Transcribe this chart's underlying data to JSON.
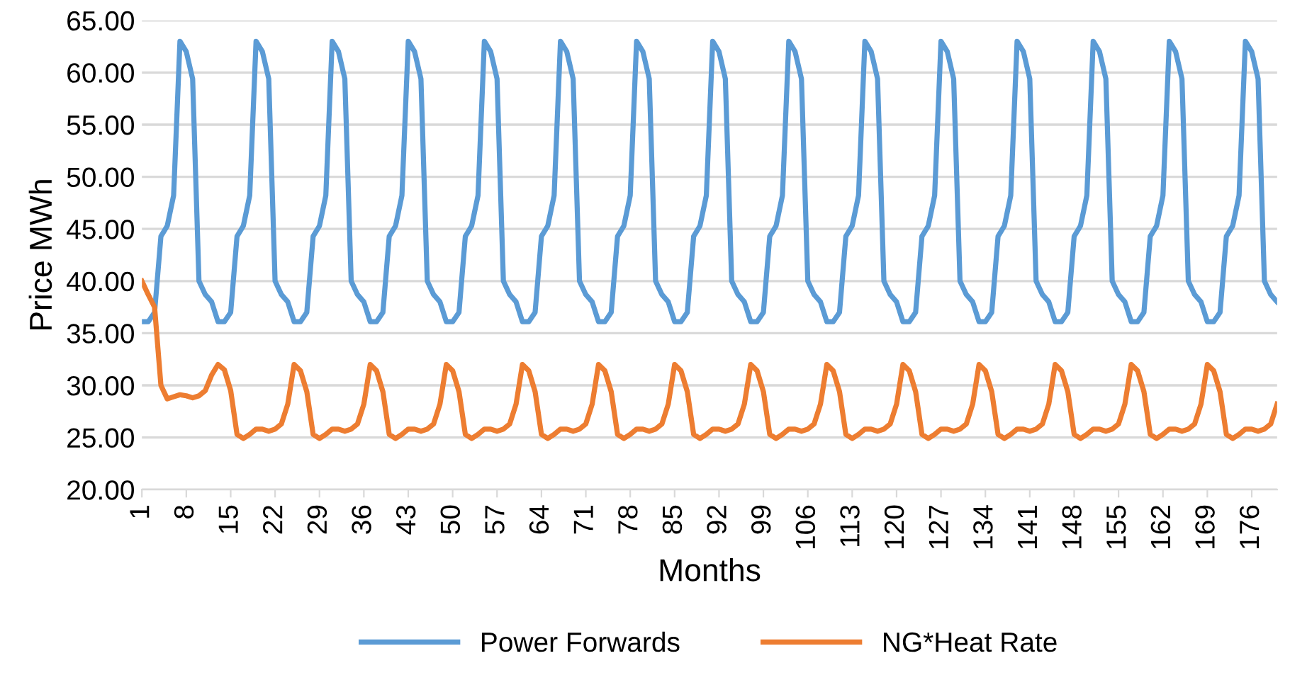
{
  "chart_data": {
    "type": "line",
    "xlabel": "Months",
    "ylabel": "Price MWh",
    "x": [
      1,
      2,
      3,
      4,
      5,
      6,
      7,
      8,
      9,
      10,
      11,
      12,
      13,
      14,
      15,
      16,
      17,
      18,
      19,
      20,
      21,
      22,
      23,
      24,
      25,
      26,
      27,
      28,
      29,
      30,
      31,
      32,
      33,
      34,
      35,
      36,
      37,
      38,
      39,
      40,
      41,
      42,
      43,
      44,
      45,
      46,
      47,
      48,
      49,
      50,
      51,
      52,
      53,
      54,
      55,
      56,
      57,
      58,
      59,
      60,
      61,
      62,
      63,
      64,
      65,
      66,
      67,
      68,
      69,
      70,
      71,
      72,
      73,
      74,
      75,
      76,
      77,
      78,
      79,
      80,
      81,
      82,
      83,
      84,
      85,
      86,
      87,
      88,
      89,
      90,
      91,
      92,
      93,
      94,
      95,
      96,
      97,
      98,
      99,
      100,
      101,
      102,
      103,
      104,
      105,
      106,
      107,
      108,
      109,
      110,
      111,
      112,
      113,
      114,
      115,
      116,
      117,
      118,
      119,
      120,
      121,
      122,
      123,
      124,
      125,
      126,
      127,
      128,
      129,
      130,
      131,
      132,
      133,
      134,
      135,
      136,
      137,
      138,
      139,
      140,
      141,
      142,
      143,
      144,
      145,
      146,
      147,
      148,
      149,
      150,
      151,
      152,
      153,
      154,
      155,
      156,
      157,
      158,
      159,
      160,
      161,
      162,
      163,
      164,
      165,
      166,
      167,
      168,
      169,
      170,
      171,
      172,
      173,
      174,
      175,
      176,
      177,
      178,
      179,
      180
    ],
    "series": [
      {
        "name": "Power Forwards",
        "color": "#5b9bd5",
        "values": [
          36.1,
          36.1,
          37.0,
          44.3,
          45.3,
          48.2,
          63.0,
          62.0,
          59.4,
          40.0,
          38.7,
          38.0,
          36.1,
          36.1,
          37.0,
          44.3,
          45.3,
          48.2,
          63.0,
          62.0,
          59.4,
          40.0,
          38.7,
          38.0,
          36.1,
          36.1,
          37.0,
          44.3,
          45.3,
          48.2,
          63.0,
          62.0,
          59.4,
          40.0,
          38.7,
          38.0,
          36.1,
          36.1,
          37.0,
          44.3,
          45.3,
          48.2,
          63.0,
          62.0,
          59.4,
          40.0,
          38.7,
          38.0,
          36.1,
          36.1,
          37.0,
          44.3,
          45.3,
          48.2,
          63.0,
          62.0,
          59.4,
          40.0,
          38.7,
          38.0,
          36.1,
          36.1,
          37.0,
          44.3,
          45.3,
          48.2,
          63.0,
          62.0,
          59.4,
          40.0,
          38.7,
          38.0,
          36.1,
          36.1,
          37.0,
          44.3,
          45.3,
          48.2,
          63.0,
          62.0,
          59.4,
          40.0,
          38.7,
          38.0,
          36.1,
          36.1,
          37.0,
          44.3,
          45.3,
          48.2,
          63.0,
          62.0,
          59.4,
          40.0,
          38.7,
          38.0,
          36.1,
          36.1,
          37.0,
          44.3,
          45.3,
          48.2,
          63.0,
          62.0,
          59.4,
          40.0,
          38.7,
          38.0,
          36.1,
          36.1,
          37.0,
          44.3,
          45.3,
          48.2,
          63.0,
          62.0,
          59.4,
          40.0,
          38.7,
          38.0,
          36.1,
          36.1,
          37.0,
          44.3,
          45.3,
          48.2,
          63.0,
          62.0,
          59.4,
          40.0,
          38.7,
          38.0,
          36.1,
          36.1,
          37.0,
          44.3,
          45.3,
          48.2,
          63.0,
          62.0,
          59.4,
          40.0,
          38.7,
          38.0,
          36.1,
          36.1,
          37.0,
          44.3,
          45.3,
          48.2,
          63.0,
          62.0,
          59.4,
          40.0,
          38.7,
          38.0,
          36.1,
          36.1,
          37.0,
          44.3,
          45.3,
          48.2,
          63.0,
          62.0,
          59.4,
          40.0,
          38.7,
          38.0,
          36.1,
          36.1,
          37.0,
          44.3,
          45.3,
          48.2,
          63.0,
          62.0,
          59.4,
          40.0,
          38.7,
          38.0
        ]
      },
      {
        "name": "NG*Heat Rate",
        "color": "#ed7d31",
        "values": [
          40.0,
          38.7,
          37.5,
          30.0,
          28.7,
          28.9,
          29.1,
          29.0,
          28.8,
          29.0,
          29.5,
          31.0,
          32.0,
          31.5,
          29.5,
          25.3,
          24.9,
          25.3,
          25.8,
          25.8,
          25.6,
          25.8,
          26.3,
          28.2,
          32.0,
          31.4,
          29.4,
          25.3,
          24.9,
          25.3,
          25.8,
          25.8,
          25.6,
          25.8,
          26.3,
          28.2,
          32.0,
          31.4,
          29.4,
          25.3,
          24.9,
          25.3,
          25.8,
          25.8,
          25.6,
          25.8,
          26.3,
          28.2,
          32.0,
          31.4,
          29.4,
          25.3,
          24.9,
          25.3,
          25.8,
          25.8,
          25.6,
          25.8,
          26.3,
          28.2,
          32.0,
          31.4,
          29.4,
          25.3,
          24.9,
          25.3,
          25.8,
          25.8,
          25.6,
          25.8,
          26.3,
          28.2,
          32.0,
          31.4,
          29.4,
          25.3,
          24.9,
          25.3,
          25.8,
          25.8,
          25.6,
          25.8,
          26.3,
          28.2,
          32.0,
          31.4,
          29.4,
          25.3,
          24.9,
          25.3,
          25.8,
          25.8,
          25.6,
          25.8,
          26.3,
          28.2,
          32.0,
          31.4,
          29.4,
          25.3,
          24.9,
          25.3,
          25.8,
          25.8,
          25.6,
          25.8,
          26.3,
          28.2,
          32.0,
          31.4,
          29.4,
          25.3,
          24.9,
          25.3,
          25.8,
          25.8,
          25.6,
          25.8,
          26.3,
          28.2,
          32.0,
          31.4,
          29.4,
          25.3,
          24.9,
          25.3,
          25.8,
          25.8,
          25.6,
          25.8,
          26.3,
          28.2,
          32.0,
          31.4,
          29.4,
          25.3,
          24.9,
          25.3,
          25.8,
          25.8,
          25.6,
          25.8,
          26.3,
          28.2,
          32.0,
          31.4,
          29.4,
          25.3,
          24.9,
          25.3,
          25.8,
          25.8,
          25.6,
          25.8,
          26.3,
          28.2,
          32.0,
          31.4,
          29.4,
          25.3,
          24.9,
          25.3,
          25.8,
          25.8,
          25.6,
          25.8,
          26.3,
          28.2,
          32.0,
          31.4,
          29.4,
          25.3,
          24.9,
          25.3,
          25.8,
          25.8,
          25.6,
          25.8,
          26.3,
          28.2
        ]
      }
    ],
    "xlim": [
      1,
      180
    ],
    "xticks": [
      1,
      8,
      15,
      22,
      29,
      36,
      43,
      50,
      57,
      64,
      71,
      78,
      85,
      92,
      99,
      106,
      113,
      120,
      127,
      134,
      141,
      148,
      155,
      162,
      169,
      176
    ],
    "ylim": [
      20,
      65
    ],
    "yticks": [
      {
        "value": 20,
        "label": "20.00"
      },
      {
        "value": 25,
        "label": "25.00"
      },
      {
        "value": 30,
        "label": "30.00"
      },
      {
        "value": 35,
        "label": "35.00"
      },
      {
        "value": 40,
        "label": "40.00"
      },
      {
        "value": 45,
        "label": "45.00"
      },
      {
        "value": 50,
        "label": "50.00"
      },
      {
        "value": 55,
        "label": "55.00"
      },
      {
        "value": 60,
        "label": "60.00"
      },
      {
        "value": 65,
        "label": "65.00"
      }
    ],
    "grid": "y",
    "legend": "bottom",
    "marker": "none",
    "line_style": "solid"
  }
}
